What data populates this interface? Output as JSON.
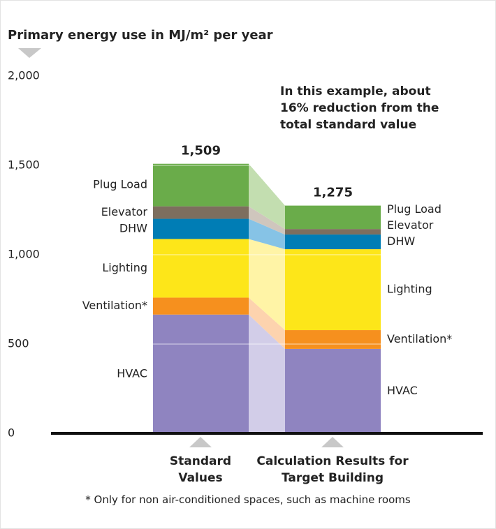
{
  "chart_data": {
    "type": "stacked_bar",
    "title": "Primary energy use in MJ/m² per year",
    "annotation": "In this example, about 16% reduction from the total standard value",
    "footnote": "* Only for non air-conditioned spaces, such as machine rooms",
    "categories": [
      "Standard Values",
      "Calculation Results for Target Building"
    ],
    "series": [
      {
        "name": "HVAC",
        "color": "#8f84c0",
        "light_color": "#d2cde8",
        "values": [
          665,
          473
        ]
      },
      {
        "name": "Ventilation*",
        "color": "#f6901e",
        "light_color": "#fdd3ae",
        "values": [
          95,
          105
        ]
      },
      {
        "name": "Lighting",
        "color": "#fde619",
        "light_color": "#fff4a6",
        "values": [
          328,
          453
        ]
      },
      {
        "name": "DHW",
        "color": "#007db5",
        "light_color": "#86c3e6",
        "values": [
          113,
          82
        ]
      },
      {
        "name": "Elevator",
        "color": "#7d6e5e",
        "light_color": "#cfc6bd",
        "values": [
          70,
          31
        ]
      },
      {
        "name": "Plug Load",
        "color": "#6aac4a",
        "light_color": "#c3deb0",
        "values": [
          238,
          131
        ]
      }
    ],
    "totals": {
      "values": [
        1509,
        1275
      ],
      "labels": [
        "1,509",
        "1,275"
      ]
    },
    "ylim": [
      0,
      2000
    ],
    "yticks": [
      0,
      500,
      {
        "value": 1000,
        "label": "1,000"
      },
      {
        "value": 1500,
        "label": "1,500"
      },
      {
        "value": 2000,
        "label": "2,000"
      }
    ],
    "grid": true
  }
}
